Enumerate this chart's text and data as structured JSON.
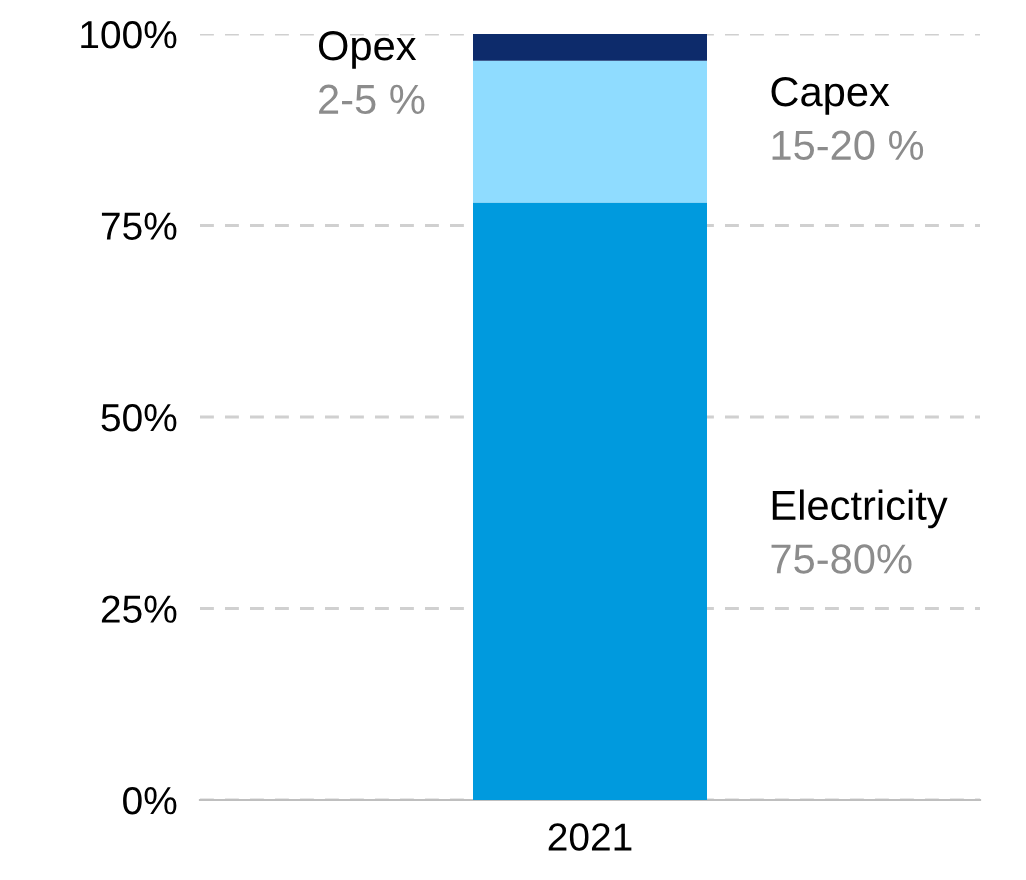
{
  "chart_data": {
    "type": "bar",
    "stacked": true,
    "categories": [
      "2021"
    ],
    "series": [
      {
        "name": "Electricity",
        "color": "#009ade",
        "values": [
          78
        ]
      },
      {
        "name": "Capex",
        "color": "#8fdcff",
        "values": [
          18.5
        ]
      },
      {
        "name": "Opex",
        "color": "#0d2b6b",
        "values": [
          3.5
        ]
      }
    ],
    "annotations": [
      "75-80%",
      "15-20 %",
      "2-5 %"
    ],
    "ylim": [
      0,
      100
    ],
    "yticks": [
      {
        "value": 0,
        "label": "0%"
      },
      {
        "value": 25,
        "label": "25%"
      },
      {
        "value": 50,
        "label": "50%"
      },
      {
        "value": 75,
        "label": "75%"
      },
      {
        "value": 100,
        "label": "100%"
      }
    ],
    "grid": "y",
    "legend": false
  }
}
